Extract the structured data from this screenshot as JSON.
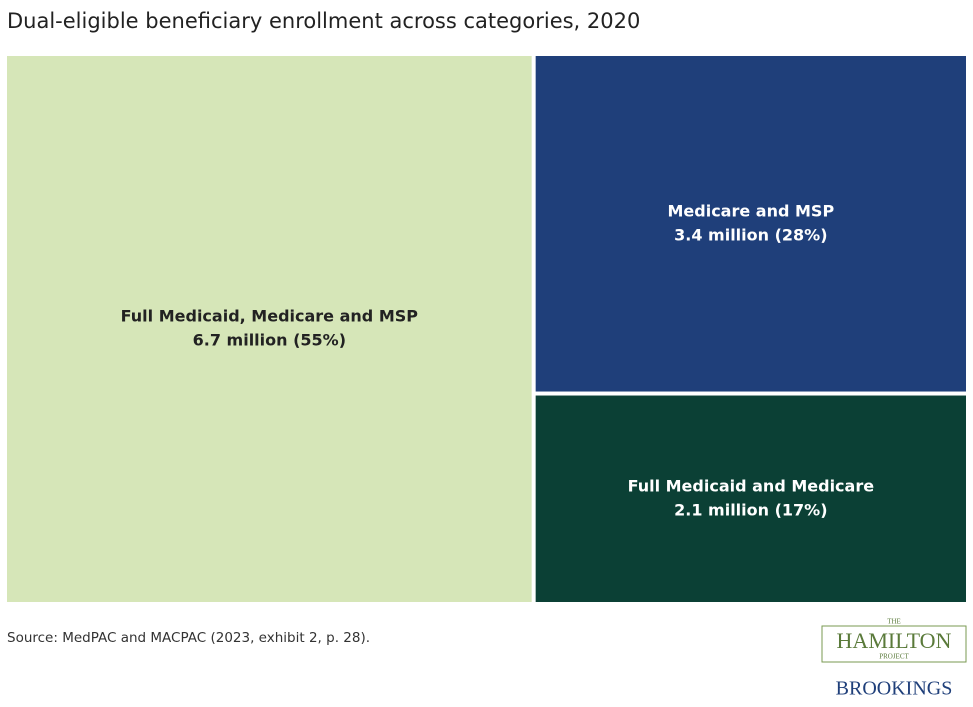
{
  "chart_data": {
    "type": "treemap",
    "title": "Dual-eligible beneficiary enrollment across categories, 2020",
    "categories": [
      "Full Medicaid, Medicare and MSP",
      "Medicare and MSP",
      "Full Medicaid and Medicare"
    ],
    "values": [
      6.7,
      3.4,
      2.1
    ],
    "value_labels": [
      "6.7 million (55%)",
      "3.4 million (28%)",
      "2.1 million (17%)"
    ],
    "colors": [
      "#d6e6b8",
      "#1f3f7a",
      "#0b4035"
    ]
  },
  "source": "Source:  MedPAC and MACPAC (2023, exhibit 2, p. 28).",
  "logo": {
    "top": "THE",
    "name": "HAMILTON",
    "bottom": "PROJECT",
    "brand": "BROOKINGS"
  }
}
